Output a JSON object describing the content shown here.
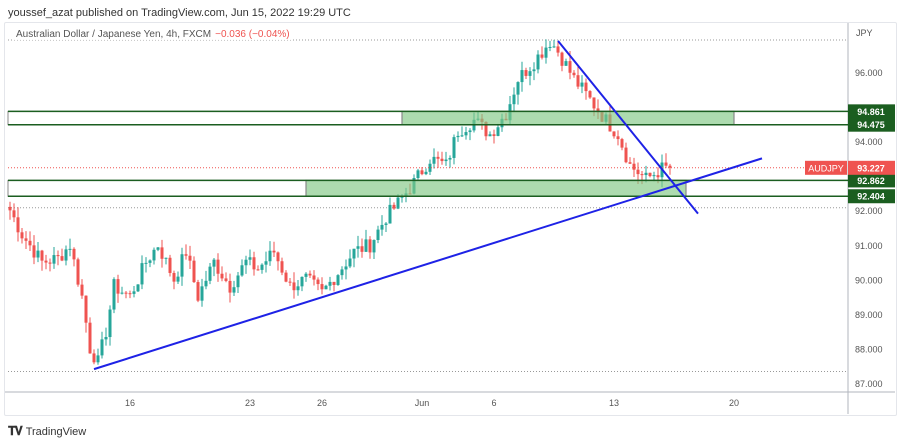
{
  "header": {
    "published": "youssef_azat published on TradingView.com, Jun 15, 2022 19:29 UTC"
  },
  "legend": {
    "title": "Australian Dollar / Japanese Yen, 4h, FXCM",
    "change": "−0.036 (−0.04%)"
  },
  "footer": {
    "brand": "TradingView",
    "logo_icon": "tradingview-logo-icon"
  },
  "colors": {
    "up": "#26a69a",
    "down": "#ef5350",
    "trendline": "#1e22e6",
    "level": "#1b5e20",
    "zone": "#81c784"
  },
  "chart_data": {
    "type": "candlestick",
    "symbol": "AUDJPY",
    "currency_label": "JPY",
    "ylim": [
      86.7,
      97.4
    ],
    "y_ticks": [
      "96.000",
      "94.000",
      "92.000",
      "91.000",
      "90.000",
      "89.000",
      "88.000",
      "87.000"
    ],
    "y_tick_values": [
      96,
      94,
      92,
      91,
      90,
      89,
      88,
      87
    ],
    "x_ticks": [
      {
        "label": "16",
        "bar": 30
      },
      {
        "label": "23",
        "bar": 60
      },
      {
        "label": "26",
        "bar": 78
      },
      {
        "label": "Jun",
        "bar": 103
      },
      {
        "label": "6",
        "bar": 121
      },
      {
        "label": "13",
        "bar": 151
      },
      {
        "label": "20",
        "bar": 181
      }
    ],
    "bars_total": 210,
    "close_path_anchors": [
      [
        0,
        92.0
      ],
      [
        3,
        91.3
      ],
      [
        8,
        90.5
      ],
      [
        12,
        90.6
      ],
      [
        15,
        91.0
      ],
      [
        18,
        89.5
      ],
      [
        20,
        88.0
      ],
      [
        22,
        87.6
      ],
      [
        24,
        88.5
      ],
      [
        26,
        89.8
      ],
      [
        30,
        89.5
      ],
      [
        34,
        90.5
      ],
      [
        37,
        91.0
      ],
      [
        41,
        90.0
      ],
      [
        44,
        90.8
      ],
      [
        47,
        89.5
      ],
      [
        51,
        90.5
      ],
      [
        55,
        89.8
      ],
      [
        59,
        90.5
      ],
      [
        62,
        90.3
      ],
      [
        66,
        90.8
      ],
      [
        70,
        89.8
      ],
      [
        74,
        90.0
      ],
      [
        78,
        89.6
      ],
      [
        82,
        90.2
      ],
      [
        86,
        90.8
      ],
      [
        90,
        91.0
      ],
      [
        94,
        91.8
      ],
      [
        97,
        92.2
      ],
      [
        101,
        92.8
      ],
      [
        105,
        93.5
      ],
      [
        109,
        93.3
      ],
      [
        112,
        94.3
      ],
      [
        116,
        94.6
      ],
      [
        120,
        94.2
      ],
      [
        124,
        94.8
      ],
      [
        127,
        95.8
      ],
      [
        131,
        96.3
      ],
      [
        135,
        96.9
      ],
      [
        137,
        96.6
      ],
      [
        141,
        95.8
      ],
      [
        145,
        95.2
      ],
      [
        149,
        94.6
      ],
      [
        152,
        94.2
      ],
      [
        155,
        93.3
      ],
      [
        159,
        92.9
      ],
      [
        163,
        93.2
      ],
      [
        165,
        93.23
      ]
    ],
    "last_price": {
      "label": "AUDJPY",
      "value": "93.227"
    },
    "levels": [
      {
        "value": "94.861",
        "price": 94.861
      },
      {
        "value": "94.475",
        "price": 94.475
      },
      {
        "value": "92.862",
        "price": 92.862
      },
      {
        "value": "92.404",
        "price": 92.404
      }
    ],
    "zones": [
      {
        "from_bar": 98,
        "to_bar": 181,
        "top": 94.861,
        "bottom": 94.475
      },
      {
        "from_bar": 74,
        "to_bar": 169,
        "top": 92.862,
        "bottom": 92.404
      }
    ],
    "trendlines": [
      {
        "from": [
          21,
          87.4
        ],
        "to": [
          188,
          93.5
        ]
      },
      {
        "from": [
          137,
          96.9
        ],
        "to": [
          172,
          91.9
        ]
      }
    ]
  }
}
